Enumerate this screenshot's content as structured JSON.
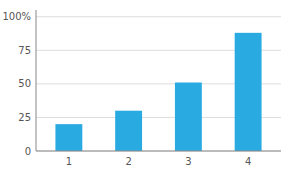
{
  "chart_data": {
    "type": "bar",
    "x": [
      1,
      2,
      3,
      4
    ],
    "values": [
      20,
      30,
      51,
      88
    ],
    "color": "#29ABE2",
    "xlim": [
      0.45,
      4.55
    ],
    "xticks": [
      1,
      2,
      3,
      4
    ],
    "ylim": [
      0,
      105
    ],
    "yticks": [
      0,
      25,
      50,
      75,
      {
        "value": 100,
        "label": "100%"
      }
    ],
    "grid": true
  }
}
